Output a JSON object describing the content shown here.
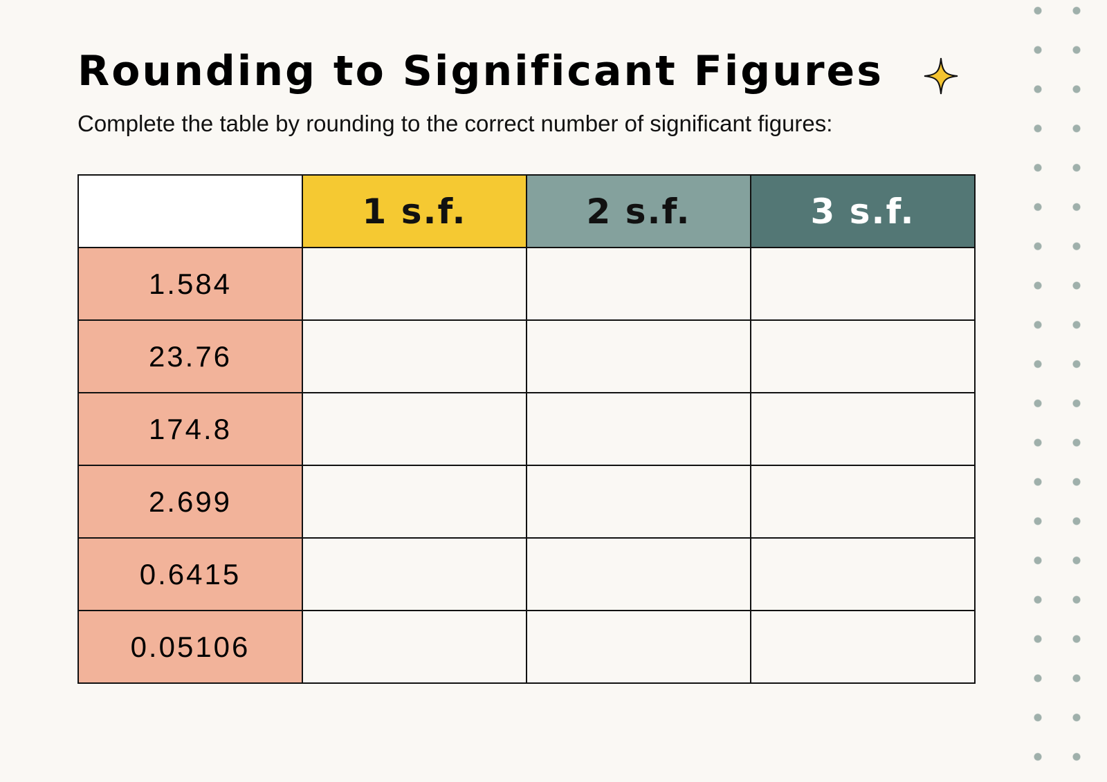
{
  "header": {
    "title": "Rounding to Significant Figures",
    "subtitle": "Complete the table by rounding to the correct number of significant figures:"
  },
  "table": {
    "columns": [
      "1 s.f.",
      "2 s.f.",
      "3 s.f."
    ],
    "rows": [
      "1.584",
      "23.76",
      "174.8",
      "2.699",
      "0.6415",
      "0.05106"
    ]
  }
}
